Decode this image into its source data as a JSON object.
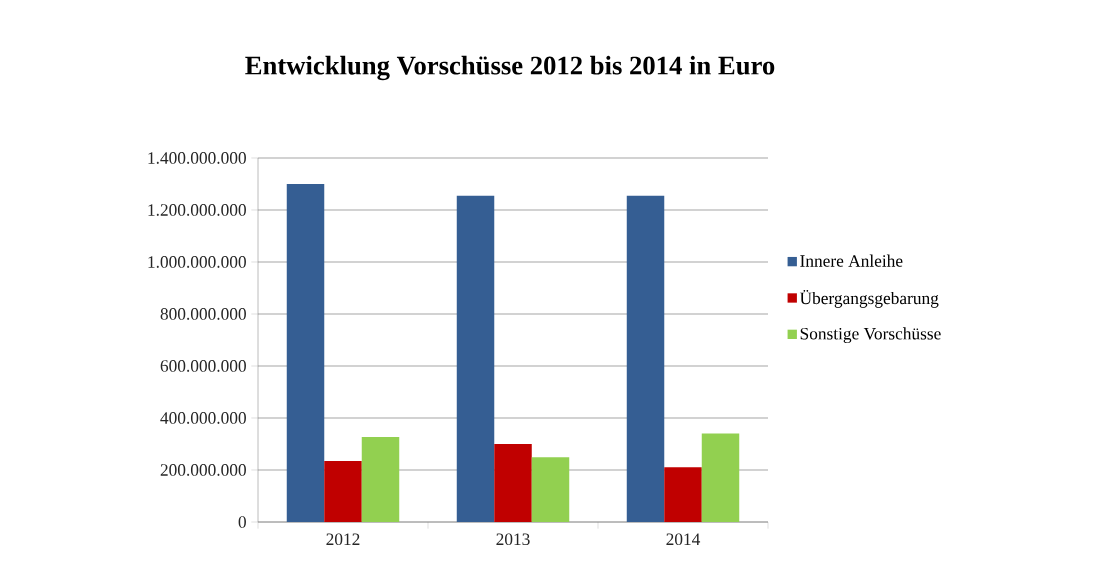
{
  "chart_data": {
    "type": "bar",
    "title": "Entwicklung Vorschüsse 2012 bis 2014 in Euro",
    "categories": [
      "2012",
      "2013",
      "2014"
    ],
    "series": [
      {
        "name": "Innere Anleihe",
        "color": "#355e93",
        "values": [
          1300000000,
          1255000000,
          1255000000
        ]
      },
      {
        "name": "Übergangsgebarung",
        "color": "#c00000",
        "values": [
          235000000,
          300000000,
          211000000
        ]
      },
      {
        "name": "Sonstige Vorschüsse",
        "color": "#92d050",
        "values": [
          327000000,
          249000000,
          340000000
        ]
      }
    ],
    "ylim": [
      0,
      1400000000
    ],
    "yticks": [
      {
        "value": 0,
        "label": "0"
      },
      {
        "value": 200000000,
        "label": "200.000.000"
      },
      {
        "value": 400000000,
        "label": "400.000.000"
      },
      {
        "value": 600000000,
        "label": "600.000.000"
      },
      {
        "value": 800000000,
        "label": "800.000.000"
      },
      {
        "value": 1000000000,
        "label": "1.000.000.000"
      },
      {
        "value": 1200000000,
        "label": "1.200.000.000"
      },
      {
        "value": 1400000000,
        "label": "1.400.000.000"
      }
    ],
    "grid": "y",
    "legend": "right"
  }
}
